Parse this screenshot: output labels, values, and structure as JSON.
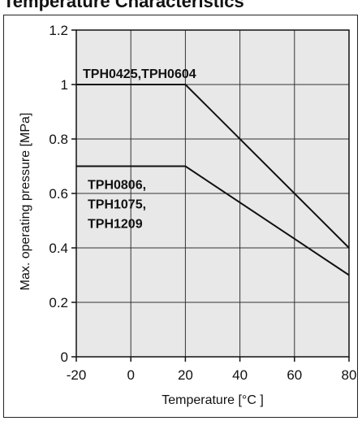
{
  "header": {
    "text": "Temperature Characteristics"
  },
  "chart_data": {
    "type": "line",
    "title": "",
    "xlabel": "Temperature [°C ]",
    "ylabel": "Max. operating pressure [MPa]",
    "xlim": [
      -20,
      80
    ],
    "ylim": [
      0,
      1.2
    ],
    "xticks": [
      -20,
      0,
      20,
      40,
      60,
      80
    ],
    "yticks": [
      0,
      0.2,
      0.4,
      0.6,
      0.8,
      1,
      1.2
    ],
    "xtick_labels": [
      "-20",
      "0",
      "20",
      "40",
      "60",
      "80"
    ],
    "ytick_labels": [
      "0",
      "0.2",
      "0.4",
      "0.6",
      "0.8",
      "1",
      "1.2"
    ],
    "grid": true,
    "background": "#e8e8e8",
    "line_color": "#111111",
    "series": [
      {
        "label_lines": [
          "TPH0425,TPH0604"
        ],
        "x": [
          -20,
          20,
          80
        ],
        "y": [
          1.0,
          1.0,
          0.4
        ]
      },
      {
        "label_lines": [
          "TPH0806,",
          "TPH1075,",
          "TPH1209"
        ],
        "x": [
          -20,
          20,
          80
        ],
        "y": [
          0.7,
          0.7,
          0.3
        ]
      }
    ]
  }
}
